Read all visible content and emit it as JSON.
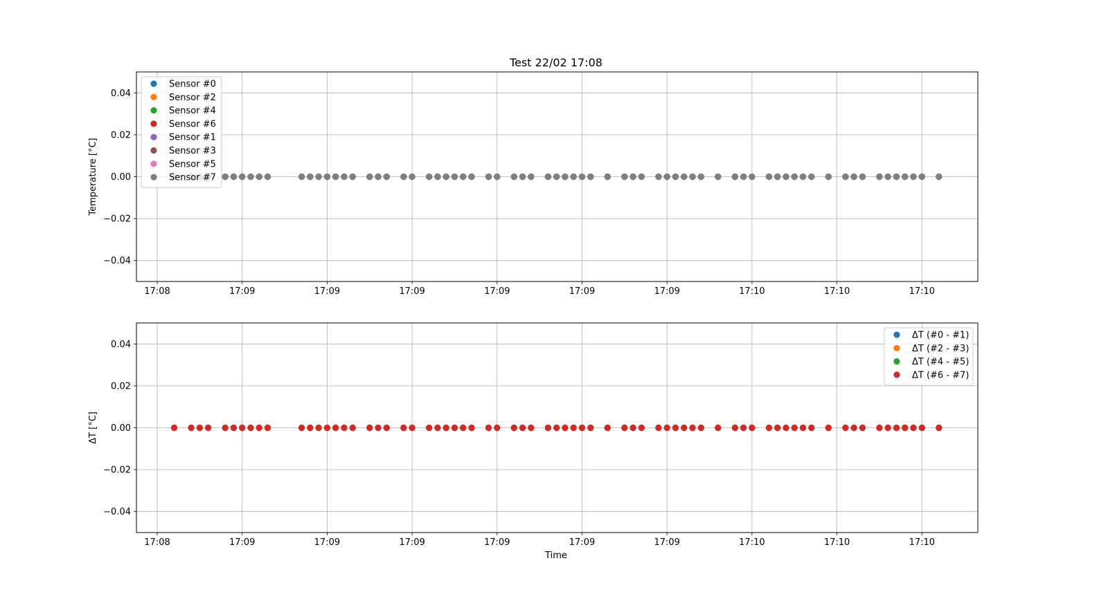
{
  "chart_data": [
    {
      "type": "scatter",
      "title": "Test 22/02 17:08",
      "xlabel": "",
      "ylabel": "Temperature [°C]",
      "ylim": [
        -0.05,
        0.05
      ],
      "yticks": [
        -0.04,
        -0.02,
        0.0,
        0.02,
        0.04
      ],
      "ytick_labels": [
        "−0.04",
        "−0.02",
        "0.00",
        "0.02",
        "0.04"
      ],
      "xlim": [
        0.0,
        9.9
      ],
      "xticks": [
        0,
        1,
        2,
        3,
        4,
        5,
        6,
        7,
        8,
        9
      ],
      "xtick_labels": [
        "17:08",
        "17:09",
        "17:09",
        "17:09",
        "17:09",
        "17:09",
        "17:09",
        "17:10",
        "17:10",
        "17:10"
      ],
      "grid": true,
      "legend_position": "upper-left",
      "series": [
        {
          "name": "Sensor #0",
          "color": "#1f77b4"
        },
        {
          "name": "Sensor #2",
          "color": "#ff7f0e"
        },
        {
          "name": "Sensor #4",
          "color": "#2ca02c"
        },
        {
          "name": "Sensor #6",
          "color": "#d62728"
        },
        {
          "name": "Sensor #1",
          "color": "#9467bd"
        },
        {
          "name": "Sensor #3",
          "color": "#8c564b"
        },
        {
          "name": "Sensor #5",
          "color": "#e377c2"
        },
        {
          "name": "Sensor #7",
          "color": "#7f7f7f"
        }
      ],
      "x": [
        0.2,
        0.4,
        0.5,
        0.6,
        0.8,
        0.9,
        1.0,
        1.1,
        1.2,
        1.3,
        1.7,
        1.8,
        1.9,
        2.0,
        2.1,
        2.2,
        2.3,
        2.5,
        2.6,
        2.7,
        2.9,
        3.0,
        3.2,
        3.3,
        3.4,
        3.5,
        3.6,
        3.7,
        3.9,
        4.0,
        4.2,
        4.3,
        4.4,
        4.6,
        4.7,
        4.8,
        4.9,
        5.0,
        5.1,
        5.3,
        5.5,
        5.6,
        5.7,
        5.9,
        6.0,
        6.1,
        6.2,
        6.3,
        6.4,
        6.6,
        6.8,
        6.9,
        7.0,
        7.2,
        7.3,
        7.4,
        7.5,
        7.6,
        7.7,
        7.9,
        8.1,
        8.2,
        8.3,
        8.5,
        8.6,
        8.7,
        8.8,
        8.9,
        9.0,
        9.2
      ],
      "y_value": 0.0
    },
    {
      "type": "scatter",
      "title": "",
      "xlabel": "Time",
      "ylabel": "ΔT [°C]",
      "ylim": [
        -0.05,
        0.05
      ],
      "yticks": [
        -0.04,
        -0.02,
        0.0,
        0.02,
        0.04
      ],
      "ytick_labels": [
        "−0.04",
        "−0.02",
        "0.00",
        "0.02",
        "0.04"
      ],
      "xlim": [
        0.0,
        9.9
      ],
      "xticks": [
        0,
        1,
        2,
        3,
        4,
        5,
        6,
        7,
        8,
        9
      ],
      "xtick_labels": [
        "17:08",
        "17:09",
        "17:09",
        "17:09",
        "17:09",
        "17:09",
        "17:09",
        "17:10",
        "17:10",
        "17:10"
      ],
      "grid": true,
      "legend_position": "upper-right",
      "series": [
        {
          "name": "ΔT (#0 - #1)",
          "color": "#1f77b4"
        },
        {
          "name": "ΔT (#2 - #3)",
          "color": "#ff7f0e"
        },
        {
          "name": "ΔT (#4 - #5)",
          "color": "#2ca02c"
        },
        {
          "name": "ΔT (#6 - #7)",
          "color": "#d62728"
        }
      ],
      "x": [
        0.2,
        0.4,
        0.5,
        0.6,
        0.8,
        0.9,
        1.0,
        1.1,
        1.2,
        1.3,
        1.7,
        1.8,
        1.9,
        2.0,
        2.1,
        2.2,
        2.3,
        2.5,
        2.6,
        2.7,
        2.9,
        3.0,
        3.2,
        3.3,
        3.4,
        3.5,
        3.6,
        3.7,
        3.9,
        4.0,
        4.2,
        4.3,
        4.4,
        4.6,
        4.7,
        4.8,
        4.9,
        5.0,
        5.1,
        5.3,
        5.5,
        5.6,
        5.7,
        5.9,
        6.0,
        6.1,
        6.2,
        6.3,
        6.4,
        6.6,
        6.8,
        6.9,
        7.0,
        7.2,
        7.3,
        7.4,
        7.5,
        7.6,
        7.7,
        7.9,
        8.1,
        8.2,
        8.3,
        8.5,
        8.6,
        8.7,
        8.8,
        8.9,
        9.0,
        9.2
      ],
      "y_value": 0.0
    }
  ]
}
